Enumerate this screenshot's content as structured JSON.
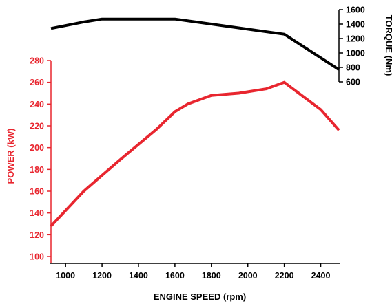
{
  "chart_data": {
    "type": "line",
    "xlabel": "ENGINE SPEED (rpm)",
    "x_ticks": [
      1000,
      1200,
      1400,
      1600,
      1800,
      2000,
      2200,
      2400
    ],
    "xlim": [
      920,
      2500
    ],
    "colors": {
      "power": "#e8262f",
      "torque": "#000000"
    },
    "power": {
      "ylabel": "POWER (kW)",
      "ylim": [
        100,
        280
      ],
      "ticks": [
        100,
        120,
        140,
        160,
        180,
        200,
        220,
        240,
        260,
        280
      ],
      "x": [
        920,
        1100,
        1300,
        1500,
        1600,
        1670,
        1800,
        1950,
        2100,
        2200,
        2400,
        2500
      ],
      "y": [
        128,
        160,
        189,
        217,
        233,
        240,
        248,
        250,
        254,
        260,
        235,
        216
      ]
    },
    "torque": {
      "ylabel": "TORQUE (Nm)",
      "ylim": [
        600,
        1600
      ],
      "ticks": [
        600,
        800,
        1000,
        1200,
        1400,
        1600
      ],
      "x": [
        920,
        1100,
        1200,
        1300,
        1600,
        1800,
        2000,
        2200,
        2500
      ],
      "y": [
        1340,
        1430,
        1470,
        1470,
        1470,
        1400,
        1330,
        1260,
        770
      ]
    }
  }
}
